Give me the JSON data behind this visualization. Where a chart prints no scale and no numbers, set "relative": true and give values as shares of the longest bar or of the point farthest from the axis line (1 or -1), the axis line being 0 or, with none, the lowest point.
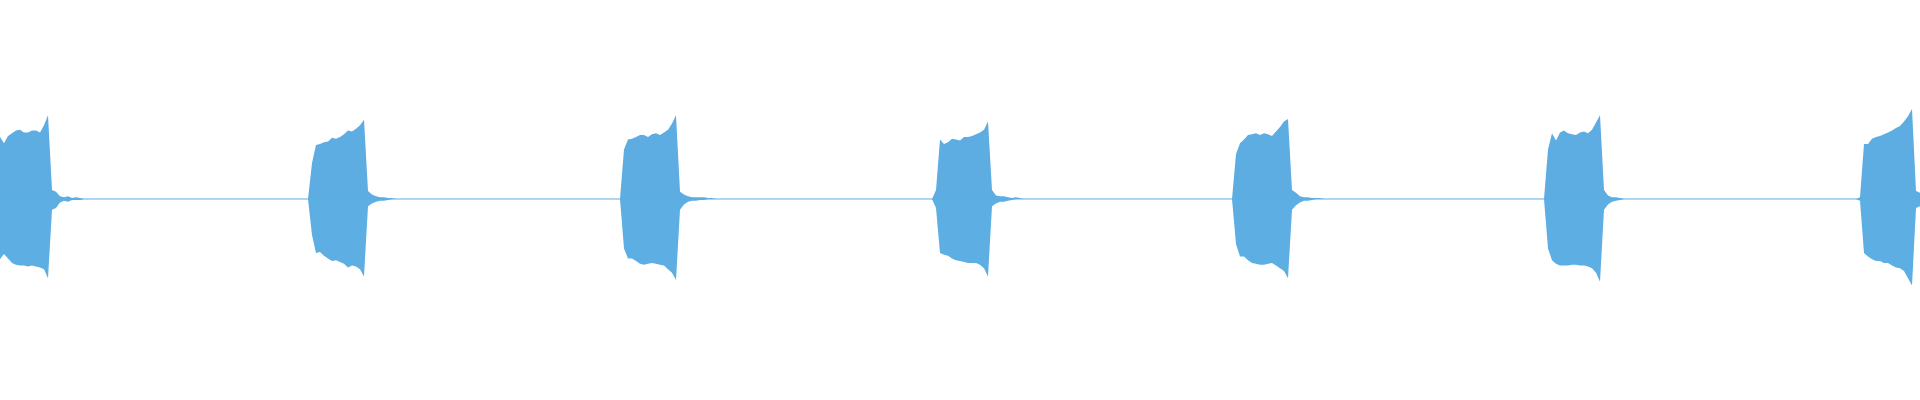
{
  "chart_data": {
    "type": "area",
    "relative": true,
    "categories": [
      null,
      null,
      null,
      null,
      null,
      null,
      null,
      null,
      null,
      null,
      null,
      null,
      null,
      null,
      null,
      null,
      null,
      null,
      null,
      null,
      null,
      null,
      null,
      null,
      null,
      null,
      null,
      null,
      null,
      null,
      null,
      null,
      null,
      null,
      null,
      null,
      null,
      null,
      null,
      null,
      null,
      null,
      null,
      null,
      null,
      null,
      null,
      null,
      null,
      null,
      null,
      null,
      null,
      null,
      null,
      null,
      null,
      null,
      null,
      null,
      null,
      null,
      null,
      null,
      null,
      null,
      null,
      null,
      null,
      null,
      null,
      null,
      null,
      null,
      null,
      null,
      null,
      null,
      null,
      null,
      null,
      null,
      null,
      null,
      null,
      null,
      null,
      null,
      null,
      null,
      null,
      null,
      null,
      null,
      null,
      null,
      null,
      null,
      null,
      null,
      null,
      null,
      null,
      null,
      null,
      null,
      null,
      null,
      null,
      null,
      null,
      null,
      null,
      null,
      null,
      null,
      null,
      null,
      null,
      null,
      null,
      null,
      null,
      null,
      null,
      null,
      null,
      null,
      null,
      null,
      null,
      null,
      null,
      null,
      null,
      null,
      null,
      null,
      null,
      null,
      null,
      null,
      null,
      null,
      null,
      null,
      null,
      null,
      null,
      null,
      null,
      null,
      null,
      null,
      null,
      null,
      null,
      null,
      null,
      null,
      null,
      null,
      null,
      null,
      null,
      null,
      null,
      null,
      null,
      null,
      null,
      null,
      null,
      null,
      null,
      null,
      null,
      null,
      null,
      null,
      null,
      null,
      null,
      null,
      null,
      null,
      null,
      null,
      null,
      null,
      null,
      null,
      null,
      null,
      null,
      null,
      null,
      null,
      null,
      null,
      null,
      null,
      null,
      null,
      null,
      null,
      null,
      null,
      null,
      null,
      null,
      null,
      null,
      null,
      null,
      null,
      null,
      null,
      null,
      null,
      null,
      null,
      null,
      null,
      null,
      null,
      null,
      null,
      null,
      null,
      null,
      null,
      null,
      null,
      null,
      null,
      null,
      null,
      null,
      null,
      null,
      null,
      null,
      null,
      null,
      null,
      null,
      null,
      null,
      null,
      null,
      null,
      null,
      null,
      null,
      null,
      null,
      null,
      null,
      null,
      null,
      null,
      null,
      null,
      null,
      null,
      null,
      null,
      null,
      null,
      null,
      null,
      null,
      null,
      null,
      null,
      null,
      null,
      null,
      null,
      null,
      null,
      null,
      null,
      null,
      null,
      null,
      null,
      null,
      null,
      null,
      null,
      null,
      null,
      null,
      null,
      null,
      null,
      null,
      null,
      null,
      null,
      null,
      null,
      null,
      null,
      null,
      null,
      null,
      null,
      null,
      null,
      null,
      null,
      null,
      null,
      null,
      null,
      null,
      null,
      null,
      null,
      null,
      null,
      null,
      null,
      null,
      null,
      null,
      null,
      null,
      null,
      null,
      null,
      null,
      null,
      null,
      null,
      null,
      null,
      null,
      null,
      null,
      null,
      null,
      null,
      null,
      null,
      null,
      null,
      null,
      null,
      null,
      null,
      null,
      null,
      null,
      null,
      null,
      null,
      null,
      null,
      null,
      null,
      null,
      null,
      null,
      null,
      null,
      null,
      null,
      null,
      null,
      null,
      null,
      null,
      null,
      null,
      null,
      null,
      null,
      null,
      null,
      null,
      null,
      null,
      null,
      null,
      null,
      null,
      null,
      null,
      null,
      null,
      null,
      null,
      null,
      null,
      null,
      null,
      null,
      null,
      null,
      null,
      null,
      null,
      null,
      null,
      null,
      null,
      null,
      null,
      null,
      null,
      null,
      null,
      null,
      null,
      null,
      null,
      null,
      null,
      null,
      null,
      null,
      null,
      null,
      null,
      null,
      null,
      null,
      null,
      null,
      null,
      null,
      null,
      null,
      null,
      null,
      null,
      null,
      null,
      null,
      null,
      null,
      null,
      null,
      null,
      null,
      null,
      null,
      null,
      null,
      null,
      null,
      null,
      null,
      null,
      null,
      null,
      null,
      null,
      null,
      null,
      null,
      null,
      null,
      null,
      null,
      null,
      null,
      null,
      null,
      null,
      null,
      null,
      null,
      null,
      null,
      null,
      null
    ],
    "series": [
      {
        "color": "#5dade2",
        "values": [
          0.69,
          0.62,
          0.7,
          0.73,
          0.76,
          0.77,
          0.74,
          0.74,
          0.76,
          0.76,
          0.74,
          0.82,
          0.93,
          0.1,
          0.08,
          0.03,
          0.02,
          0.03,
          0.01,
          0.02,
          0.01,
          0,
          0,
          0,
          0,
          0,
          0,
          0,
          0,
          0,
          0,
          0,
          0,
          0,
          0,
          0,
          0,
          0,
          0,
          0,
          0,
          0,
          0,
          0,
          0,
          0,
          0,
          0,
          0,
          0,
          0,
          0,
          0,
          0,
          0,
          0,
          0,
          0,
          0,
          0,
          0,
          0,
          0,
          0,
          0,
          0,
          0,
          0,
          0,
          0,
          0,
          0,
          0,
          0,
          0,
          0,
          0,
          0,
          0.4,
          0.6,
          0.61,
          0.63,
          0.64,
          0.68,
          0.67,
          0.69,
          0.72,
          0.76,
          0.75,
          0.78,
          0.82,
          0.88,
          0.09,
          0.05,
          0.03,
          0.02,
          0.02,
          0.01,
          0.01,
          0,
          0,
          0,
          0,
          0,
          0,
          0,
          0,
          0,
          0,
          0,
          0,
          0,
          0,
          0,
          0,
          0,
          0,
          0,
          0,
          0,
          0,
          0,
          0,
          0,
          0,
          0,
          0,
          0,
          0,
          0,
          0,
          0,
          0,
          0,
          0,
          0,
          0,
          0,
          0,
          0,
          0,
          0,
          0,
          0,
          0,
          0,
          0,
          0,
          0,
          0,
          0,
          0,
          0,
          0,
          0,
          0,
          0.55,
          0.66,
          0.67,
          0.69,
          0.71,
          0.71,
          0.69,
          0.72,
          0.73,
          0.71,
          0.74,
          0.77,
          0.84,
          0.93,
          0.08,
          0.05,
          0.03,
          0.02,
          0.02,
          0.02,
          0.02,
          0.01,
          0.01,
          0,
          0,
          0,
          0,
          0,
          0,
          0,
          0,
          0,
          0,
          0,
          0,
          0,
          0,
          0,
          0,
          0,
          0,
          0,
          0,
          0,
          0,
          0,
          0,
          0,
          0,
          0,
          0,
          0,
          0,
          0,
          0,
          0,
          0,
          0,
          0,
          0,
          0,
          0,
          0,
          0,
          0,
          0,
          0,
          0,
          0,
          0,
          0,
          0,
          0,
          0,
          0,
          0,
          0,
          0,
          0.1,
          0.66,
          0.61,
          0.63,
          0.67,
          0.66,
          0.65,
          0.69,
          0.69,
          0.7,
          0.72,
          0.74,
          0.77,
          0.86,
          0.1,
          0.04,
          0.03,
          0.03,
          0.02,
          0.01,
          0.02,
          0.01,
          0,
          0,
          0,
          0,
          0,
          0,
          0,
          0,
          0,
          0,
          0,
          0,
          0,
          0,
          0,
          0,
          0,
          0,
          0,
          0,
          0,
          0,
          0,
          0,
          0,
          0,
          0,
          0,
          0,
          0,
          0,
          0,
          0,
          0,
          0,
          0,
          0,
          0,
          0,
          0,
          0,
          0,
          0,
          0,
          0,
          0,
          0,
          0,
          0,
          0,
          0,
          0,
          0,
          0.5,
          0.62,
          0.66,
          0.71,
          0.72,
          0.73,
          0.71,
          0.73,
          0.72,
          0.7,
          0.75,
          0.8,
          0.86,
          0.89,
          0.1,
          0.07,
          0.03,
          0.02,
          0.02,
          0.01,
          0.01,
          0.01,
          0,
          0,
          0,
          0,
          0,
          0,
          0,
          0,
          0,
          0,
          0,
          0,
          0,
          0,
          0,
          0,
          0,
          0,
          0,
          0,
          0,
          0,
          0,
          0,
          0,
          0,
          0,
          0,
          0,
          0,
          0,
          0,
          0,
          0,
          0,
          0,
          0,
          0,
          0,
          0,
          0,
          0,
          0,
          0,
          0,
          0,
          0,
          0,
          0,
          0,
          0,
          0,
          0,
          0,
          0,
          0,
          0.55,
          0.73,
          0.65,
          0.74,
          0.76,
          0.73,
          0.72,
          0.71,
          0.74,
          0.75,
          0.73,
          0.77,
          0.85,
          0.93,
          0.1,
          0.04,
          0.02,
          0.02,
          0.01,
          0,
          0,
          0,
          0,
          0,
          0,
          0,
          0,
          0,
          0,
          0,
          0,
          0,
          0,
          0,
          0,
          0,
          0,
          0,
          0,
          0,
          0,
          0,
          0,
          0,
          0,
          0,
          0,
          0,
          0,
          0,
          0,
          0,
          0,
          0,
          0,
          0,
          0,
          0,
          0,
          0,
          0,
          0,
          0,
          0,
          0,
          0,
          0,
          0,
          0,
          0,
          0,
          0,
          0,
          0,
          0,
          0,
          0,
          0,
          0.02,
          0.61,
          0.61,
          0.67,
          0.69,
          0.7,
          0.72,
          0.74,
          0.76,
          0.79,
          0.81,
          0.86,
          0.92,
          1.0,
          0.09,
          0.07
        ]
      },
      {
        "color": "#5daee2",
        "values": [
          -0.67,
          -0.61,
          -0.66,
          -0.71,
          -0.73,
          -0.74,
          -0.74,
          -0.75,
          -0.74,
          -0.75,
          -0.76,
          -0.78,
          -0.88,
          -0.12,
          -0.1,
          -0.04,
          -0.02,
          -0.03,
          -0.01,
          -0.01,
          -0.01,
          0,
          0,
          0,
          0,
          0,
          0,
          0,
          0,
          0,
          0,
          0,
          0,
          0,
          0,
          0,
          0,
          0,
          0,
          0,
          0,
          0,
          0,
          0,
          0,
          0,
          0,
          0,
          0,
          0,
          0,
          0,
          0,
          0,
          0,
          0,
          0,
          0,
          0,
          0,
          0,
          0,
          0,
          0,
          0,
          0,
          0,
          0,
          0,
          0,
          0,
          0,
          0,
          0,
          0,
          0,
          0,
          0,
          -0.4,
          -0.6,
          -0.59,
          -0.63,
          -0.66,
          -0.69,
          -0.68,
          -0.7,
          -0.72,
          -0.76,
          -0.74,
          -0.75,
          -0.78,
          -0.86,
          -0.08,
          -0.05,
          -0.03,
          -0.02,
          -0.02,
          -0.01,
          0,
          0,
          0,
          0,
          0,
          0,
          0,
          0,
          0,
          0,
          0,
          0,
          0,
          0,
          0,
          0,
          0,
          0,
          0,
          0,
          0,
          0,
          0,
          0,
          0,
          0,
          0,
          0,
          0,
          0,
          0,
          0,
          0,
          0,
          0,
          0,
          0,
          0,
          0,
          0,
          0,
          0,
          0,
          0,
          0,
          0,
          0,
          0,
          0,
          0,
          0,
          0,
          0,
          0,
          0,
          0,
          0,
          0,
          -0.55,
          -0.66,
          -0.66,
          -0.69,
          -0.72,
          -0.73,
          -0.72,
          -0.71,
          -0.72,
          -0.73,
          -0.74,
          -0.78,
          -0.82,
          -0.9,
          -0.12,
          -0.06,
          -0.03,
          -0.02,
          -0.02,
          -0.01,
          -0.01,
          0,
          0,
          0,
          0,
          0,
          0,
          0,
          0,
          0,
          0,
          0,
          0,
          0,
          0,
          0,
          0,
          0,
          0,
          0,
          0,
          0,
          0,
          0,
          0,
          0,
          0,
          0,
          0,
          0,
          0,
          0,
          0,
          0,
          0,
          0,
          0,
          0,
          0,
          0,
          0,
          0,
          0,
          0,
          0,
          0,
          0,
          0,
          0,
          0,
          0,
          0,
          0,
          0,
          0,
          0,
          0,
          0,
          -0.1,
          -0.6,
          -0.62,
          -0.63,
          -0.66,
          -0.68,
          -0.69,
          -0.7,
          -0.71,
          -0.71,
          -0.71,
          -0.73,
          -0.77,
          -0.86,
          -0.08,
          -0.05,
          -0.03,
          -0.03,
          -0.02,
          -0.01,
          0,
          0,
          0,
          0,
          0,
          0,
          0,
          0,
          0,
          0,
          0,
          0,
          0,
          0,
          0,
          0,
          0,
          0,
          0,
          0,
          0,
          0,
          0,
          0,
          0,
          0,
          0,
          0,
          0,
          0,
          0,
          0,
          0,
          0,
          0,
          0,
          0,
          0,
          0,
          0,
          0,
          0,
          0,
          0,
          0,
          0,
          0,
          0,
          0,
          0,
          0,
          0,
          0,
          0,
          0,
          -0.5,
          -0.64,
          -0.64,
          -0.68,
          -0.71,
          -0.72,
          -0.73,
          -0.73,
          -0.72,
          -0.71,
          -0.74,
          -0.77,
          -0.8,
          -0.88,
          -0.12,
          -0.07,
          -0.04,
          -0.02,
          -0.02,
          -0.01,
          0,
          0,
          0,
          0,
          0,
          0,
          0,
          0,
          0,
          0,
          0,
          0,
          0,
          0,
          0,
          0,
          0,
          0,
          0,
          0,
          0,
          0,
          0,
          0,
          0,
          0,
          0,
          0,
          0,
          0,
          0,
          0,
          0,
          0,
          0,
          0,
          0,
          0,
          0,
          0,
          0,
          0,
          0,
          0,
          0,
          0,
          0,
          0,
          0,
          0,
          0,
          0,
          0,
          0,
          0,
          0,
          0,
          0,
          -0.55,
          -0.68,
          -0.72,
          -0.74,
          -0.74,
          -0.74,
          -0.73,
          -0.73,
          -0.74,
          -0.74,
          -0.75,
          -0.77,
          -0.82,
          -0.92,
          -0.12,
          -0.06,
          -0.03,
          -0.02,
          -0.01,
          0,
          0,
          0,
          0,
          0,
          0,
          0,
          0,
          0,
          0,
          0,
          0,
          0,
          0,
          0,
          0,
          0,
          0,
          0,
          0,
          0,
          0,
          0,
          0,
          0,
          0,
          0,
          0,
          0,
          0,
          0,
          0,
          0,
          0,
          0,
          0,
          0,
          0,
          0,
          0,
          0,
          0,
          0,
          0,
          0,
          0,
          0,
          0,
          0,
          0,
          0,
          0,
          0,
          0,
          0,
          0,
          0,
          0,
          0,
          -0.02,
          -0.6,
          -0.64,
          -0.67,
          -0.69,
          -0.69,
          -0.71,
          -0.71,
          -0.74,
          -0.76,
          -0.77,
          -0.8,
          -0.88,
          -0.96,
          -0.1,
          -0.08
        ]
      }
    ],
    "ref_lines": [
      {
        "axis": "y",
        "value": 0,
        "color": "#5dade2"
      }
    ]
  }
}
